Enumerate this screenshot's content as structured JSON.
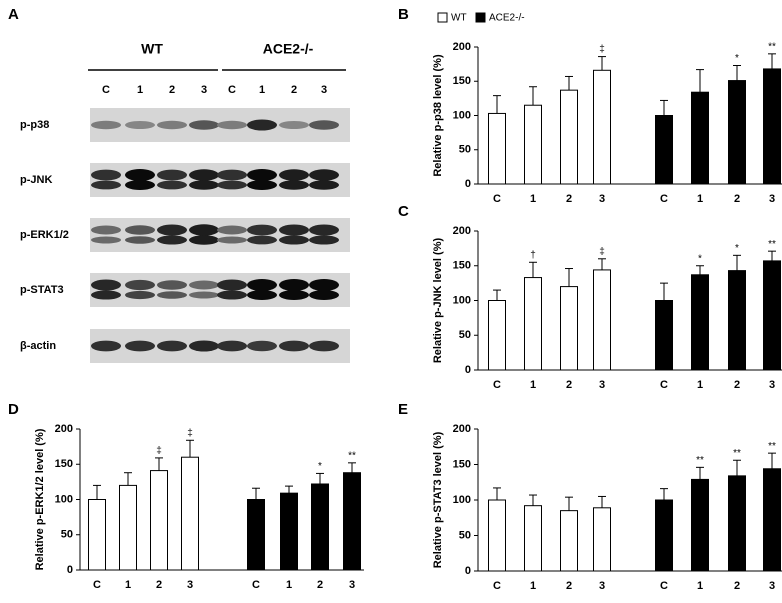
{
  "blot": {
    "panel": "A",
    "groups": [
      "WT",
      "ACE2-/-"
    ],
    "lanes": [
      "C",
      "1",
      "2",
      "3",
      "C",
      "1",
      "2",
      "3"
    ],
    "rows": [
      "p-p38",
      "p-JNK",
      "p-ERK1/2",
      "p-STAT3",
      "β-actin"
    ]
  },
  "chart_data": [
    {
      "type": "bar",
      "panel": "B",
      "ylabel": "Relative p-p38 level (%)",
      "categories": [
        "C",
        "1",
        "2",
        "3"
      ],
      "ylim": [
        0,
        200
      ],
      "yticks": [
        0,
        50,
        100,
        150,
        200
      ],
      "legend": true,
      "series": [
        {
          "name": "WT",
          "color": "#ffffff",
          "values": [
            103,
            115,
            137,
            166
          ],
          "errors": [
            26,
            27,
            20,
            20
          ],
          "sig": [
            null,
            null,
            null,
            "‡"
          ]
        },
        {
          "name": "ACE2-/-",
          "color": "#000000",
          "values": [
            100,
            134,
            151,
            168
          ],
          "errors": [
            22,
            33,
            22,
            22
          ],
          "sig": [
            null,
            null,
            "*",
            "**"
          ]
        }
      ]
    },
    {
      "type": "bar",
      "panel": "C",
      "ylabel": "Relative p-JNK level (%)",
      "categories": [
        "C",
        "1",
        "2",
        "3"
      ],
      "ylim": [
        0,
        200
      ],
      "yticks": [
        0,
        50,
        100,
        150,
        200
      ],
      "series": [
        {
          "color": "#ffffff",
          "values": [
            100,
            133,
            120,
            144
          ],
          "errors": [
            15,
            22,
            26,
            16
          ],
          "sig": [
            null,
            "†",
            null,
            "‡"
          ]
        },
        {
          "color": "#000000",
          "values": [
            100,
            137,
            143,
            157
          ],
          "errors": [
            25,
            13,
            22,
            14
          ],
          "sig": [
            null,
            "*",
            "*",
            "**"
          ]
        }
      ]
    },
    {
      "type": "bar",
      "panel": "D",
      "ylabel": "Relative p-ERK1/2 level (%)",
      "categories": [
        "C",
        "1",
        "2",
        "3"
      ],
      "ylim": [
        0,
        200
      ],
      "yticks": [
        0,
        50,
        100,
        150,
        200
      ],
      "series": [
        {
          "color": "#ffffff",
          "values": [
            100,
            120,
            141,
            160
          ],
          "errors": [
            20,
            18,
            18,
            24
          ],
          "sig": [
            null,
            null,
            "‡",
            "‡"
          ]
        },
        {
          "color": "#000000",
          "values": [
            100,
            109,
            122,
            138
          ],
          "errors": [
            16,
            10,
            15,
            14
          ],
          "sig": [
            null,
            null,
            "*",
            "**"
          ]
        }
      ]
    },
    {
      "type": "bar",
      "panel": "E",
      "ylabel": "Relative p-STAT3 level (%)",
      "categories": [
        "C",
        "1",
        "2",
        "3"
      ],
      "ylim": [
        0,
        200
      ],
      "yticks": [
        0,
        50,
        100,
        150,
        200
      ],
      "series": [
        {
          "color": "#ffffff",
          "values": [
            100,
            92,
            85,
            89
          ],
          "errors": [
            17,
            15,
            19,
            16
          ],
          "sig": [
            null,
            null,
            null,
            null
          ]
        },
        {
          "color": "#000000",
          "values": [
            100,
            129,
            134,
            144
          ],
          "errors": [
            16,
            17,
            22,
            22
          ],
          "sig": [
            null,
            "**",
            "**",
            "**"
          ]
        }
      ]
    }
  ]
}
